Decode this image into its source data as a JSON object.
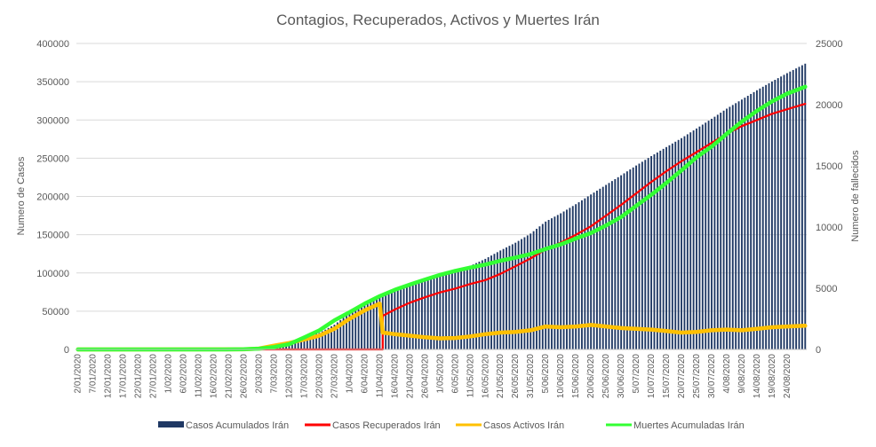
{
  "chart_data": {
    "type": "bar",
    "title": "Contagios, Recuperados, Activos y Muertes Irán",
    "ylabel": "Numero de Casos",
    "y2label": "Numero de fallecidos",
    "ylim": [
      0,
      400000
    ],
    "y2lim": [
      0,
      25000
    ],
    "yticks": [
      "0",
      "50000",
      "100000",
      "150000",
      "200000",
      "250000",
      "300000",
      "350000",
      "400000"
    ],
    "y2ticks": [
      "0",
      "5000",
      "10000",
      "15000",
      "20000",
      "25000"
    ],
    "start_date": "2/01/2020",
    "end_date": "30/08/2020",
    "xticks": [
      "2/01/2020",
      "7/01/2020",
      "12/01/2020",
      "17/01/2020",
      "22/01/2020",
      "27/01/2020",
      "1/02/2020",
      "6/02/2020",
      "11/02/2020",
      "16/02/2020",
      "21/02/2020",
      "26/02/2020",
      "2/03/2020",
      "7/03/2020",
      "12/03/2020",
      "17/03/2020",
      "22/03/2020",
      "27/03/2020",
      "1/04/2020",
      "6/04/2020",
      "11/04/2020",
      "16/04/2020",
      "21/04/2020",
      "26/04/2020",
      "1/05/2020",
      "6/05/2020",
      "11/05/2020",
      "16/05/2020",
      "21/05/2020",
      "26/05/2020",
      "31/05/2020",
      "5/06/2020",
      "10/06/2020",
      "15/06/2020",
      "20/06/2020",
      "25/06/2020",
      "30/06/2020",
      "5/07/2020",
      "10/07/2020",
      "15/07/2020",
      "20/07/2020",
      "25/07/2020",
      "30/07/2020",
      "4/08/2020",
      "9/08/2020",
      "14/08/2020",
      "19/08/2020",
      "24/08/2020"
    ],
    "grid": true,
    "legend_position": "bottom",
    "series": [
      {
        "name": "Casos Acumulados Irán",
        "type": "bar",
        "axis": "left",
        "color": "#1F3864",
        "points": [
          [
            "2/01/2020",
            0
          ],
          [
            "19/02/2020",
            0
          ],
          [
            "26/02/2020",
            139
          ],
          [
            "2/03/2020",
            1501
          ],
          [
            "7/03/2020",
            5823
          ],
          [
            "12/03/2020",
            10075
          ],
          [
            "17/03/2020",
            16169
          ],
          [
            "22/03/2020",
            21638
          ],
          [
            "27/03/2020",
            32332
          ],
          [
            "1/04/2020",
            47593
          ],
          [
            "6/04/2020",
            60500
          ],
          [
            "11/04/2020",
            70029
          ],
          [
            "16/04/2020",
            77995
          ],
          [
            "21/04/2020",
            84802
          ],
          [
            "26/04/2020",
            90481
          ],
          [
            "1/05/2020",
            95646
          ],
          [
            "6/05/2020",
            101650
          ],
          [
            "11/05/2020",
            109286
          ],
          [
            "16/05/2020",
            118392
          ],
          [
            "21/05/2020",
            129341
          ],
          [
            "26/05/2020",
            139511
          ],
          [
            "31/05/2020",
            151466
          ],
          [
            "5/06/2020",
            167156
          ],
          [
            "10/06/2020",
            177938
          ],
          [
            "15/06/2020",
            189876
          ],
          [
            "20/06/2020",
            202584
          ],
          [
            "25/06/2020",
            215096
          ],
          [
            "30/06/2020",
            227662
          ],
          [
            "5/07/2020",
            240438
          ],
          [
            "10/07/2020",
            252720
          ],
          [
            "15/07/2020",
            264561
          ],
          [
            "20/07/2020",
            276202
          ],
          [
            "25/07/2020",
            288839
          ],
          [
            "30/07/2020",
            301530
          ],
          [
            "4/08/2020",
            314786
          ],
          [
            "9/08/2020",
            326712
          ],
          [
            "14/08/2020",
            338825
          ],
          [
            "19/08/2020",
            350279
          ],
          [
            "24/08/2020",
            361150
          ],
          [
            "30/08/2020",
            373570
          ]
        ]
      },
      {
        "name": "Casos Recuperados Irán",
        "type": "line",
        "axis": "left",
        "color": "#FF0000",
        "points": [
          [
            "2/01/2020",
            0
          ],
          [
            "12/04/2020",
            0
          ],
          [
            "12/04/2020",
            43894
          ],
          [
            "16/04/2020",
            52229
          ],
          [
            "21/04/2020",
            61118
          ],
          [
            "26/04/2020",
            68193
          ],
          [
            "1/05/2020",
            74525
          ],
          [
            "6/05/2020",
            79528
          ],
          [
            "11/05/2020",
            85521
          ],
          [
            "16/05/2020",
            90610
          ],
          [
            "21/05/2020",
            98808
          ],
          [
            "26/05/2020",
            108716
          ],
          [
            "31/05/2020",
            119004
          ],
          [
            "5/06/2020",
            130980
          ],
          [
            "10/06/2020",
            139595
          ],
          [
            "15/06/2020",
            149914
          ],
          [
            "20/06/2020",
            160896
          ],
          [
            "25/06/2020",
            174926
          ],
          [
            "30/06/2020",
            189030
          ],
          [
            "5/07/2020",
            204000
          ],
          [
            "10/07/2020",
            219000
          ],
          [
            "15/07/2020",
            233000
          ],
          [
            "20/07/2020",
            246000
          ],
          [
            "25/07/2020",
            258000
          ],
          [
            "30/07/2020",
            270000
          ],
          [
            "4/08/2020",
            282000
          ],
          [
            "9/08/2020",
            292000
          ],
          [
            "14/08/2020",
            300000
          ],
          [
            "19/08/2020",
            308000
          ],
          [
            "24/08/2020",
            314000
          ],
          [
            "30/08/2020",
            321000
          ]
        ]
      },
      {
        "name": "Casos Activos Irán",
        "type": "line",
        "axis": "left",
        "color": "#FFC000",
        "points": [
          [
            "2/01/2020",
            0
          ],
          [
            "26/02/2020",
            100
          ],
          [
            "2/03/2020",
            1200
          ],
          [
            "7/03/2020",
            5000
          ],
          [
            "12/03/2020",
            8500
          ],
          [
            "17/03/2020",
            13000
          ],
          [
            "22/03/2020",
            18000
          ],
          [
            "27/03/2020",
            27000
          ],
          [
            "1/04/2020",
            40000
          ],
          [
            "6/04/2020",
            51000
          ],
          [
            "11/04/2020",
            60000
          ],
          [
            "12/04/2020",
            22000
          ],
          [
            "16/04/2020",
            20000
          ],
          [
            "21/04/2020",
            18000
          ],
          [
            "26/04/2020",
            16000
          ],
          [
            "1/05/2020",
            14500
          ],
          [
            "6/05/2020",
            15000
          ],
          [
            "11/05/2020",
            17000
          ],
          [
            "16/05/2020",
            20000
          ],
          [
            "21/05/2020",
            22000
          ],
          [
            "26/05/2020",
            23000
          ],
          [
            "31/05/2020",
            25000
          ],
          [
            "5/06/2020",
            30000
          ],
          [
            "10/06/2020",
            29000
          ],
          [
            "15/06/2020",
            30000
          ],
          [
            "20/06/2020",
            32000
          ],
          [
            "25/06/2020",
            30000
          ],
          [
            "30/06/2020",
            28000
          ],
          [
            "5/07/2020",
            27000
          ],
          [
            "10/07/2020",
            26000
          ],
          [
            "15/07/2020",
            24000
          ],
          [
            "20/07/2020",
            22000
          ],
          [
            "25/07/2020",
            23000
          ],
          [
            "30/07/2020",
            25000
          ],
          [
            "4/08/2020",
            26000
          ],
          [
            "9/08/2020",
            25000
          ],
          [
            "14/08/2020",
            27000
          ],
          [
            "19/08/2020",
            29000
          ],
          [
            "24/08/2020",
            30000
          ],
          [
            "30/08/2020",
            31000
          ]
        ]
      },
      {
        "name": "Muertes Acumuladas Irán",
        "type": "line",
        "axis": "right",
        "color": "#33FF33",
        "points": [
          [
            "2/01/2020",
            0
          ],
          [
            "19/02/2020",
            2
          ],
          [
            "26/02/2020",
            19
          ],
          [
            "2/03/2020",
            66
          ],
          [
            "7/03/2020",
            194
          ],
          [
            "12/03/2020",
            429
          ],
          [
            "17/03/2020",
            988
          ],
          [
            "22/03/2020",
            1556
          ],
          [
            "27/03/2020",
            2378
          ],
          [
            "1/04/2020",
            3036
          ],
          [
            "6/04/2020",
            3739
          ],
          [
            "11/04/2020",
            4357
          ],
          [
            "16/04/2020",
            4869
          ],
          [
            "21/04/2020",
            5297
          ],
          [
            "26/04/2020",
            5710
          ],
          [
            "1/05/2020",
            6091
          ],
          [
            "6/05/2020",
            6418
          ],
          [
            "11/05/2020",
            6685
          ],
          [
            "16/05/2020",
            6937
          ],
          [
            "21/05/2020",
            7249
          ],
          [
            "26/05/2020",
            7508
          ],
          [
            "31/05/2020",
            7797
          ],
          [
            "5/06/2020",
            8209
          ],
          [
            "10/06/2020",
            8584
          ],
          [
            "15/06/2020",
            9065
          ],
          [
            "20/06/2020",
            9507
          ],
          [
            "25/06/2020",
            10130
          ],
          [
            "30/06/2020",
            10817
          ],
          [
            "5/07/2020",
            11731
          ],
          [
            "10/07/2020",
            12635
          ],
          [
            "15/07/2020",
            13608
          ],
          [
            "20/07/2020",
            14634
          ],
          [
            "25/07/2020",
            15700
          ],
          [
            "30/07/2020",
            16569
          ],
          [
            "4/08/2020",
            17617
          ],
          [
            "9/08/2020",
            18616
          ],
          [
            "14/08/2020",
            19492
          ],
          [
            "19/08/2020",
            20264
          ],
          [
            "24/08/2020",
            20901
          ],
          [
            "30/08/2020",
            21462
          ]
        ]
      }
    ]
  }
}
